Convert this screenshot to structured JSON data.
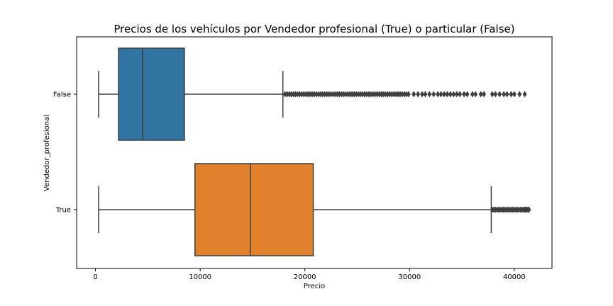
{
  "chart_data": {
    "type": "boxplot",
    "orientation": "horizontal",
    "title": "Precios de los vehículos por Vendedor profesional (True) o particular (False)",
    "xlabel": "Precio",
    "ylabel": "Vendedor_profesional",
    "xlim": [
      -1800,
      43600
    ],
    "xticks": [
      0,
      10000,
      20000,
      30000,
      40000
    ],
    "grid": false,
    "categories": [
      "False",
      "True"
    ],
    "series": [
      {
        "category": "False",
        "color": "#3274a1",
        "whisker_low": 300,
        "q1": 2200,
        "median": 4500,
        "q3": 8500,
        "whisker_high": 17900,
        "outliers": [
          18100,
          18300,
          18500,
          18700,
          18900,
          19100,
          19300,
          19500,
          19700,
          19900,
          20100,
          20300,
          20500,
          20700,
          20900,
          21100,
          21300,
          21500,
          21700,
          21900,
          22100,
          22300,
          22500,
          22700,
          22900,
          23100,
          23300,
          23500,
          23700,
          23900,
          24100,
          24300,
          24500,
          24700,
          24900,
          25100,
          25300,
          25500,
          25700,
          25900,
          26100,
          26300,
          26500,
          26700,
          26900,
          27100,
          27300,
          27500,
          27700,
          27900,
          28100,
          28300,
          28500,
          28700,
          28900,
          29100,
          29300,
          29500,
          29700,
          29900,
          30400,
          30800,
          31200,
          31500,
          31900,
          32300,
          32700,
          33000,
          33300,
          33600,
          33900,
          34200,
          34500,
          34800,
          35200,
          35500,
          36000,
          36300,
          36800,
          37100,
          37900,
          38200,
          38600,
          39000,
          39300,
          39700,
          40000,
          40500,
          41000
        ]
      },
      {
        "category": "True",
        "color": "#e1812c",
        "whisker_low": 300,
        "q1": 9500,
        "median": 14800,
        "q3": 20800,
        "whisker_high": 37800,
        "outliers": [
          37900,
          38050,
          38200,
          38350,
          38500,
          38650,
          38800,
          38950,
          39100,
          39250,
          39400,
          39550,
          39700,
          39850,
          40000,
          40150,
          40300,
          40450,
          40600,
          40750,
          40900,
          41000,
          41100,
          41200,
          41300,
          41400
        ]
      }
    ]
  }
}
